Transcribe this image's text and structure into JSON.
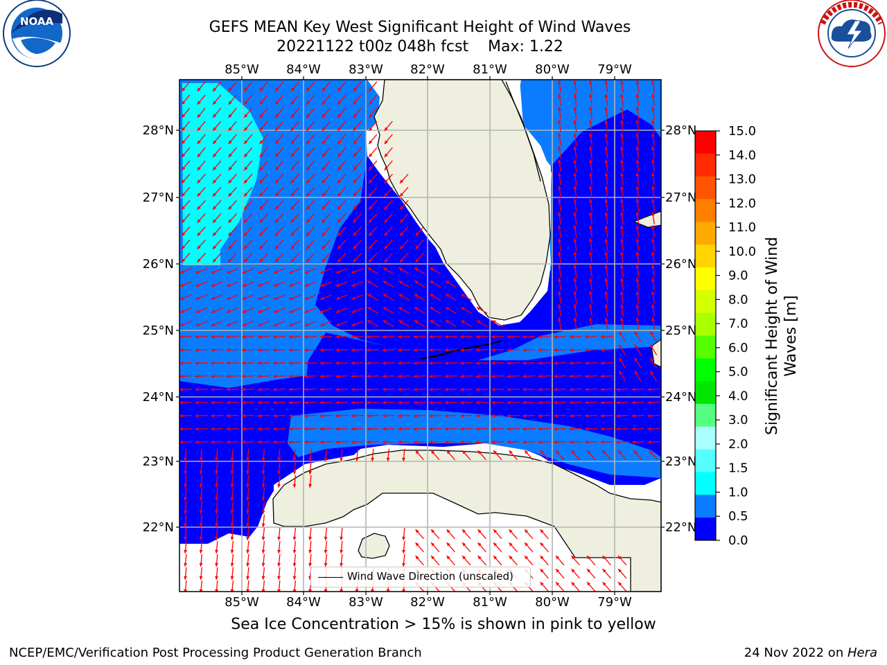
{
  "header": {
    "title": "GEFS MEAN Key West Significant Height of Wind Waves",
    "subtitle": "20221122 t00z 048h fcst    Max: 1.22"
  },
  "logos": {
    "left": {
      "icon": "noaa-logo",
      "text": "NOAA",
      "ring_text": "NATIONAL OCEANIC AND ATMOSPHERIC ADMINISTRATION · U.S. DEPARTMENT OF COMMERCE"
    },
    "right": {
      "icon": "nws-logo",
      "ring_text": "NATIONAL WEATHER SERVICE"
    }
  },
  "map": {
    "lon_ticks": [
      "85°W",
      "84°W",
      "83°W",
      "82°W",
      "81°W",
      "80°W",
      "79°W"
    ],
    "lat_ticks": [
      "28°N",
      "27°N",
      "26°N",
      "25°N",
      "24°N",
      "23°N",
      "22°N"
    ],
    "legend_label": "Wind Wave Direction (unscaled)",
    "colors": {
      "land": "#efefdf",
      "class_0_0_5": "#0000ff",
      "class_0_5_1_0": "#0b7cff",
      "class_1_0_1_5": "#00ffff",
      "arrows": "#ff0000",
      "gridlines": "#b4b4b4"
    }
  },
  "colorbar": {
    "title": "Significant Height of Wind Waves [m]",
    "tick_labels": [
      "15.0",
      "14.0",
      "13.0",
      "12.0",
      "11.0",
      "10.0",
      "9.0",
      "8.0",
      "7.0",
      "6.0",
      "5.0",
      "4.0",
      "3.0",
      "2.0",
      "1.5",
      "1.0",
      "0.5",
      "0.0"
    ],
    "colors_top_to_bottom": [
      "#ff0000",
      "#ff2a00",
      "#ff5500",
      "#ff8000",
      "#ffaa00",
      "#ffd400",
      "#ffff00",
      "#d4ff00",
      "#aaff00",
      "#55ff00",
      "#00ff00",
      "#00e600",
      "#55ff80",
      "#aaffff",
      "#55ffff",
      "#00ffff",
      "#0b7cff",
      "#0000ff"
    ]
  },
  "note": "Sea Ice Concentration > 15% is shown in pink to yellow",
  "footer": {
    "left": "NCEP/EMC/Verification Post Processing Product Generation Branch",
    "right_date": "24 Nov 2022 on ",
    "right_host": "Hera"
  }
}
